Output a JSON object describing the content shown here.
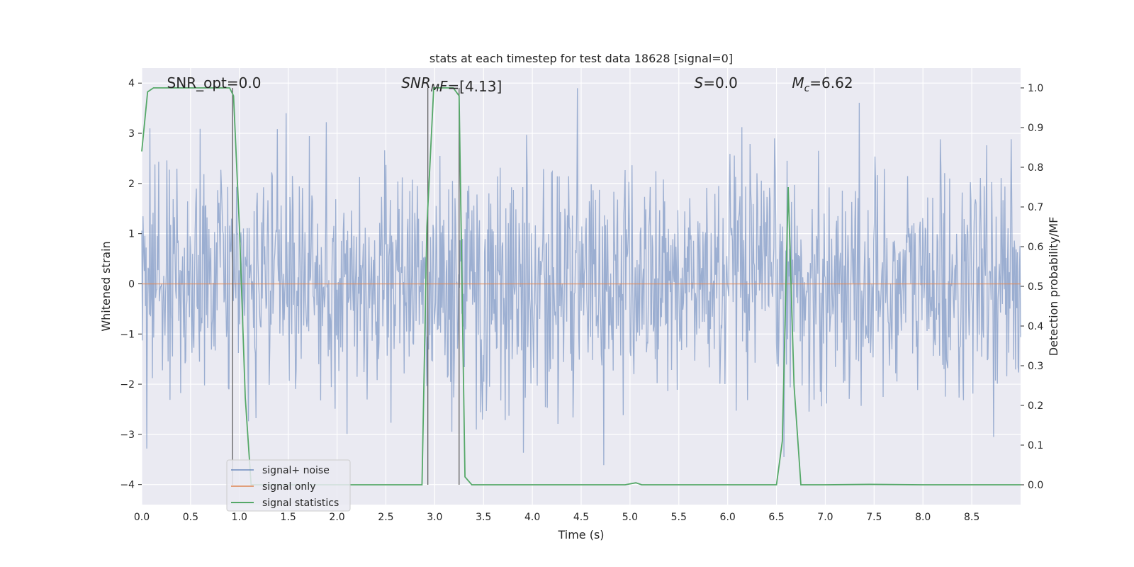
{
  "chart_data": {
    "type": "line",
    "title": "stats at each timestep for test data 18628 [signal=0]",
    "xlabel": "Time (s)",
    "ylabel": "Whitened strain",
    "y2label": "Detection probability/MF",
    "xlim": [
      0.0,
      9.0
    ],
    "ylim": [
      -4.4,
      4.3
    ],
    "y2lim": [
      -0.05,
      1.05
    ],
    "x_ticks": [
      0.0,
      0.5,
      1.0,
      1.5,
      2.0,
      2.5,
      3.0,
      3.5,
      4.0,
      4.5,
      5.0,
      5.5,
      6.0,
      6.5,
      7.0,
      7.5,
      8.0,
      8.5
    ],
    "x_tick_labels": [
      "0.0",
      "0.5",
      "1.0",
      "1.5",
      "2.0",
      "2.5",
      "3.0",
      "3.5",
      "4.0",
      "4.5",
      "5.0",
      "5.5",
      "6.0",
      "6.5",
      "7.0",
      "7.5",
      "8.0",
      "8.5"
    ],
    "y_ticks": [
      -4,
      -3,
      -2,
      -1,
      0,
      1,
      2,
      3,
      4
    ],
    "y_tick_labels": [
      "−4",
      "−3",
      "−2",
      "−1",
      "0",
      "1",
      "2",
      "3",
      "4"
    ],
    "y2_ticks": [
      0.0,
      0.1,
      0.2,
      0.3,
      0.4,
      0.5,
      0.6,
      0.7,
      0.8,
      0.9,
      1.0
    ],
    "y2_tick_labels": [
      "0.0",
      "0.1",
      "0.2",
      "0.3",
      "0.4",
      "0.5",
      "0.6",
      "0.7",
      "0.8",
      "0.9",
      "1.0"
    ],
    "grid": true,
    "legend_position": "lower-left",
    "annotations": [
      {
        "math": false,
        "text": "SNR_opt=0.0",
        "x": 0.2,
        "y": 4.0
      },
      {
        "math": true,
        "base": "SNR",
        "sub": "M",
        "rest": "F=[4.13]",
        "x": 2.6,
        "y": 4.0
      },
      {
        "math": true,
        "base": "S",
        "sub": "",
        "rest": "=0.0",
        "x": 5.6,
        "y": 4.0
      },
      {
        "math": true,
        "base": "M",
        "sub": "c",
        "rest": "=6.62",
        "x": 6.6,
        "y": 4.0
      }
    ],
    "vlines": [
      0.93,
      2.93,
      3.25
    ],
    "series": [
      {
        "name": "signal+ noise",
        "color": "#4c72b0",
        "axis": "left",
        "kind": "noise",
        "x_range": [
          0.0,
          9.0
        ],
        "y_range": [
          -3.9,
          3.9
        ],
        "typical_band": [
          -1.7,
          1.7
        ]
      },
      {
        "name": "signal only",
        "color": "#dd8452",
        "axis": "left",
        "x": [
          0.0,
          9.0
        ],
        "y": [
          0.0,
          0.0
        ]
      },
      {
        "name": "signal statistics",
        "color": "#55a868",
        "axis": "right",
        "x": [
          0.0,
          0.06,
          0.12,
          0.5,
          0.9,
          0.94,
          1.0,
          1.06,
          1.12,
          1.5,
          2.0,
          2.5,
          2.87,
          2.92,
          2.99,
          3.05,
          3.12,
          3.19,
          3.25,
          3.31,
          3.38,
          3.5,
          4.0,
          4.5,
          4.95,
          5.06,
          5.12,
          5.5,
          6.0,
          6.5,
          6.56,
          6.62,
          6.68,
          6.75,
          7.0,
          7.45,
          8.0,
          8.5,
          9.0
        ],
        "y": [
          0.84,
          0.99,
          1.0,
          1.0,
          1.0,
          0.98,
          0.65,
          0.22,
          0.0,
          0.0,
          0.0,
          0.0,
          0.0,
          0.65,
          1.0,
          1.0,
          1.0,
          1.0,
          0.98,
          0.02,
          0.0,
          0.0,
          0.0,
          0.0,
          0.0,
          0.005,
          0.0,
          0.0,
          0.0,
          0.0,
          0.11,
          0.75,
          0.25,
          0.0,
          0.0,
          0.001,
          0.0,
          0.0,
          0.0
        ]
      }
    ]
  }
}
